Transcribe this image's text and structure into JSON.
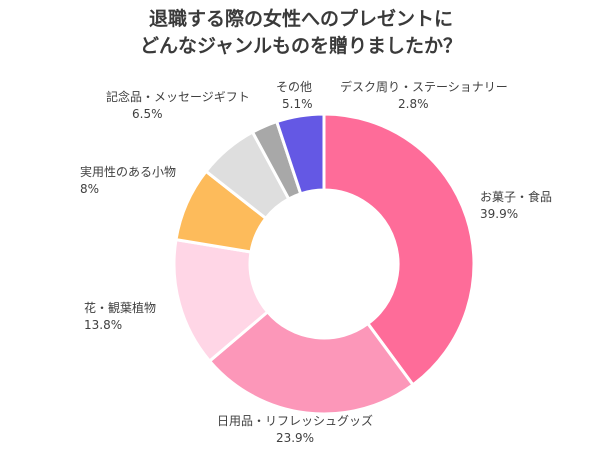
{
  "title_lines": [
    "退職する際の女性へのプレゼントに",
    "どんなジャンルものを贈りましたか？"
  ],
  "chart_data": {
    "type": "pie",
    "variant": "donut",
    "unit": "%",
    "slices": [
      {
        "label": "お菓子・食品",
        "value": 39.9,
        "value_label": "39.9%",
        "color": "#fe6c99"
      },
      {
        "label": "日用品・リフレッシュグッズ",
        "value": 23.9,
        "value_label": "23.9%",
        "color": "#fc97b9"
      },
      {
        "label": "花・観葉植物",
        "value": 13.8,
        "value_label": "13.8%",
        "color": "#ffd6e6"
      },
      {
        "label": "実用性のある小物",
        "value": 8,
        "value_label": "8%",
        "color": "#fdbb5b"
      },
      {
        "label": "記念品・メッセージギフト",
        "value": 6.5,
        "value_label": "6.5%",
        "color": "#dedede"
      },
      {
        "label": "デスク周り・ステーショナリー",
        "value": 2.8,
        "value_label": "2.8%",
        "color": "#a8a8a8"
      },
      {
        "label": "その他",
        "value": 5.1,
        "value_label": "5.1%",
        "color": "#6458e4"
      }
    ]
  }
}
